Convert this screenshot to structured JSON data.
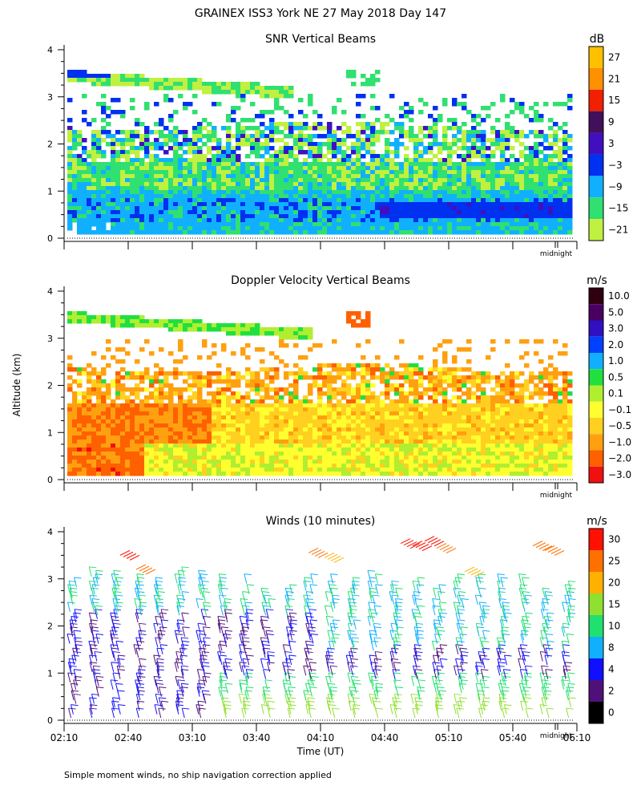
{
  "page": {
    "title": "GRAINEX ISS3 York NE  27 May 2018 Day 147",
    "ylabel": "Altitude (km)",
    "xlabel": "Time (UT)",
    "footnote": "Simple moment winds, no ship navigation correction applied",
    "midnight_label": "midnight"
  },
  "chart_data": [
    {
      "type": "heatmap",
      "title": "SNR Vertical Beams",
      "unit": "dB",
      "ylim": [
        0,
        4
      ],
      "yticks": [
        "0",
        "1",
        "2",
        "3",
        "4"
      ],
      "xlim": [
        "02:10",
        "06:10"
      ],
      "colorbar": {
        "labels": [
          "27",
          "21",
          "15",
          "9",
          "3",
          "−3",
          "−9",
          "−15",
          "−21"
        ],
        "colors": [
          "#ffc000",
          "#ff9000",
          "#f02000",
          "#40105a",
          "#4010c0",
          "#0030f0",
          "#10b0ff",
          "#30e070",
          "#c0f040"
        ]
      },
      "features": {
        "top_layer_km": [
          3.6,
          2.9
        ],
        "upper_region_top_km": 2.4,
        "lower_band_km": [
          0.4,
          0.9
        ]
      }
    },
    {
      "type": "heatmap",
      "title": "Doppler Velocity Vertical Beams",
      "unit": "m/s",
      "ylim": [
        0,
        4
      ],
      "yticks": [
        "0",
        "1",
        "2",
        "3",
        "4"
      ],
      "xlim": [
        "02:10",
        "06:10"
      ],
      "colorbar": {
        "labels": [
          "10.0",
          "5.0",
          "3.0",
          "2.0",
          "1.0",
          "0.5",
          "0.1",
          "−0.1",
          "−0.5",
          "−1.0",
          "−2.0",
          "−3.0"
        ],
        "colors": [
          "#300010",
          "#4a0060",
          "#3010c0",
          "#0040ff",
          "#10b0ff",
          "#20e040",
          "#b0ee30",
          "#ffff30",
          "#ffd020",
          "#ffa010",
          "#ff6000",
          "#f01010"
        ]
      }
    },
    {
      "type": "scatter",
      "title": "Winds (10 minutes)",
      "unit": "m/s",
      "ylim": [
        0,
        4
      ],
      "yticks": [
        "0",
        "1",
        "2",
        "3",
        "4"
      ],
      "xticks": [
        "02:10",
        "02:40",
        "03:10",
        "03:40",
        "04:10",
        "04:40",
        "05:10",
        "05:40",
        "06:10"
      ],
      "colorbar": {
        "labels": [
          "30",
          "25",
          "20",
          "15",
          "10",
          "8",
          "4",
          "2",
          "0"
        ],
        "colors": [
          "#ff1000",
          "#ff7000",
          "#ffb000",
          "#90e030",
          "#20e070",
          "#10b0ff",
          "#1010ff",
          "#50107a",
          "#000000"
        ]
      }
    }
  ]
}
